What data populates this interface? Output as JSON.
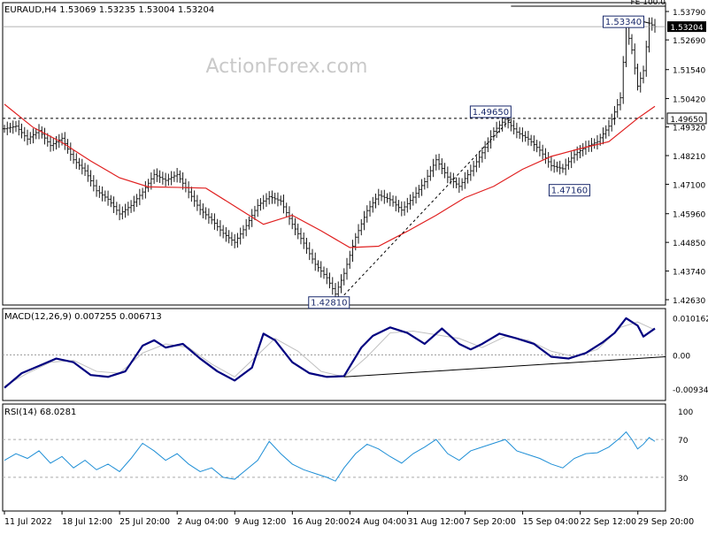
{
  "header": {
    "symbol_line": "EURAUD,H4  1.53069 1.53235 1.53004 1.53204",
    "top_right_clip": "FE 100.0"
  },
  "watermark": "ActionForex.com",
  "colors": {
    "price_bars": "#1a1a1a",
    "moving_average": "#e02020",
    "macd_line": "#000080",
    "signal_line": "#c0c0c0",
    "rsi_line": "#1f8fd6",
    "trendline": "#000000",
    "current_price_box": "#000000"
  },
  "chart_data": [
    {
      "type": "line",
      "title": "EURAUD,H4",
      "ohlc_header": [
        "1.53069",
        "1.53235",
        "1.53004",
        "1.53204"
      ],
      "x_ticks": [
        "11 Jul 2022",
        "18 Jul 12:00",
        "25 Jul 20:00",
        "2 Aug 04:00",
        "9 Aug 12:00",
        "16 Aug 20:00",
        "24 Aug 04:00",
        "31 Aug 12:00",
        "7 Sep 20:00",
        "15 Sep 04:00",
        "22 Sep 12:00",
        "29 Sep 20:00"
      ],
      "y_ticks": [
        "1.53790",
        "1.52690",
        "1.51540",
        "1.50420",
        "1.49320",
        "1.48210",
        "1.47100",
        "1.45960",
        "1.44850",
        "1.43740",
        "1.42630"
      ],
      "ylim": [
        1.4263,
        1.5379
      ],
      "price_path": [
        {
          "x": 0,
          "y": 1.4925
        },
        {
          "x": 4,
          "y": 1.4935
        },
        {
          "x": 8,
          "y": 1.4885
        },
        {
          "x": 12,
          "y": 1.4918
        },
        {
          "x": 16,
          "y": 1.486
        },
        {
          "x": 20,
          "y": 1.4888
        },
        {
          "x": 24,
          "y": 1.4805
        },
        {
          "x": 28,
          "y": 1.4762
        },
        {
          "x": 32,
          "y": 1.4685
        },
        {
          "x": 36,
          "y": 1.4652
        },
        {
          "x": 40,
          "y": 1.4595
        },
        {
          "x": 44,
          "y": 1.4628
        },
        {
          "x": 48,
          "y": 1.468
        },
        {
          "x": 52,
          "y": 1.4748
        },
        {
          "x": 56,
          "y": 1.4725
        },
        {
          "x": 60,
          "y": 1.4748
        },
        {
          "x": 64,
          "y": 1.468
        },
        {
          "x": 68,
          "y": 1.4612
        },
        {
          "x": 72,
          "y": 1.4572
        },
        {
          "x": 76,
          "y": 1.452
        },
        {
          "x": 80,
          "y": 1.4485
        },
        {
          "x": 84,
          "y": 1.455
        },
        {
          "x": 88,
          "y": 1.4628
        },
        {
          "x": 92,
          "y": 1.4662
        },
        {
          "x": 96,
          "y": 1.4645
        },
        {
          "x": 100,
          "y": 1.4555
        },
        {
          "x": 104,
          "y": 1.4482
        },
        {
          "x": 108,
          "y": 1.44
        },
        {
          "x": 112,
          "y": 1.4348
        },
        {
          "x": 115,
          "y": 1.4285
        },
        {
          "x": 118,
          "y": 1.4365
        },
        {
          "x": 122,
          "y": 1.4505
        },
        {
          "x": 126,
          "y": 1.4608
        },
        {
          "x": 130,
          "y": 1.4668
        },
        {
          "x": 134,
          "y": 1.465
        },
        {
          "x": 138,
          "y": 1.461
        },
        {
          "x": 142,
          "y": 1.466
        },
        {
          "x": 146,
          "y": 1.472
        },
        {
          "x": 150,
          "y": 1.4805
        },
        {
          "x": 154,
          "y": 1.4738
        },
        {
          "x": 158,
          "y": 1.4702
        },
        {
          "x": 162,
          "y": 1.4762
        },
        {
          "x": 166,
          "y": 1.4832
        },
        {
          "x": 170,
          "y": 1.4915
        },
        {
          "x": 174,
          "y": 1.4962
        },
        {
          "x": 178,
          "y": 1.4912
        },
        {
          "x": 182,
          "y": 1.4885
        },
        {
          "x": 186,
          "y": 1.4842
        },
        {
          "x": 190,
          "y": 1.4782
        },
        {
          "x": 194,
          "y": 1.477
        },
        {
          "x": 198,
          "y": 1.4825
        },
        {
          "x": 202,
          "y": 1.4855
        },
        {
          "x": 206,
          "y": 1.4875
        },
        {
          "x": 210,
          "y": 1.4935
        },
        {
          "x": 214,
          "y": 1.5045
        },
        {
          "x": 216,
          "y": 1.532
        },
        {
          "x": 218,
          "y": 1.523
        },
        {
          "x": 220,
          "y": 1.509
        },
        {
          "x": 222,
          "y": 1.515
        },
        {
          "x": 224,
          "y": 1.5334
        },
        {
          "x": 226,
          "y": 1.532
        }
      ],
      "moving_average": [
        {
          "x": 0,
          "y": 1.502
        },
        {
          "x": 10,
          "y": 1.493
        },
        {
          "x": 20,
          "y": 1.4872
        },
        {
          "x": 30,
          "y": 1.48
        },
        {
          "x": 40,
          "y": 1.4735
        },
        {
          "x": 50,
          "y": 1.47
        },
        {
          "x": 60,
          "y": 1.4698
        },
        {
          "x": 70,
          "y": 1.4695
        },
        {
          "x": 80,
          "y": 1.4625
        },
        {
          "x": 90,
          "y": 1.4555
        },
        {
          "x": 100,
          "y": 1.459
        },
        {
          "x": 110,
          "y": 1.453
        },
        {
          "x": 120,
          "y": 1.4465
        },
        {
          "x": 130,
          "y": 1.447
        },
        {
          "x": 140,
          "y": 1.4528
        },
        {
          "x": 150,
          "y": 1.459
        },
        {
          "x": 160,
          "y": 1.4658
        },
        {
          "x": 170,
          "y": 1.4702
        },
        {
          "x": 180,
          "y": 1.4768
        },
        {
          "x": 190,
          "y": 1.4818
        },
        {
          "x": 200,
          "y": 1.4848
        },
        {
          "x": 210,
          "y": 1.4875
        },
        {
          "x": 220,
          "y": 1.4965
        },
        {
          "x": 226,
          "y": 1.5012
        }
      ],
      "horizontal_level": 1.4965,
      "upper_reference_line": 1.5379,
      "trendline": [
        {
          "x": 118,
          "y": 1.4281
        },
        {
          "x": 176,
          "y": 1.4965
        }
      ],
      "annotations": [
        {
          "label": "1.53340",
          "x": 224,
          "y": 1.5334
        },
        {
          "label": "1.49650",
          "x": 176,
          "y": 1.4965
        },
        {
          "label": "1.47160",
          "x": 204,
          "y": 1.4716
        },
        {
          "label": "1.42810",
          "x": 118,
          "y": 1.4281
        }
      ],
      "current_price_label": "1.53204",
      "current_price": 1.53204,
      "level_label": "1.49650"
    },
    {
      "type": "line",
      "title": "MACD(12,26,9) 0.007255 0.006713",
      "y_ticks": [
        "0.010162",
        "0.00",
        "-0.009344"
      ],
      "ylim": [
        -0.011,
        0.0112
      ],
      "zero_label": "0.00",
      "macd": [
        {
          "x": 0,
          "y": -0.009
        },
        {
          "x": 6,
          "y": -0.005
        },
        {
          "x": 12,
          "y": -0.003
        },
        {
          "x": 18,
          "y": -0.001
        },
        {
          "x": 24,
          "y": -0.002
        },
        {
          "x": 30,
          "y": -0.0055
        },
        {
          "x": 36,
          "y": -0.006
        },
        {
          "x": 42,
          "y": -0.0045
        },
        {
          "x": 48,
          "y": 0.0025
        },
        {
          "x": 52,
          "y": 0.004
        },
        {
          "x": 56,
          "y": 0.002
        },
        {
          "x": 62,
          "y": 0.003
        },
        {
          "x": 68,
          "y": -0.001
        },
        {
          "x": 74,
          "y": -0.0045
        },
        {
          "x": 80,
          "y": -0.007
        },
        {
          "x": 86,
          "y": -0.0035
        },
        {
          "x": 90,
          "y": 0.0058
        },
        {
          "x": 94,
          "y": 0.004
        },
        {
          "x": 100,
          "y": -0.002
        },
        {
          "x": 106,
          "y": -0.005
        },
        {
          "x": 112,
          "y": -0.006
        },
        {
          "x": 118,
          "y": -0.0058
        },
        {
          "x": 124,
          "y": 0.002
        },
        {
          "x": 128,
          "y": 0.0052
        },
        {
          "x": 134,
          "y": 0.0075
        },
        {
          "x": 140,
          "y": 0.006
        },
        {
          "x": 146,
          "y": 0.003
        },
        {
          "x": 152,
          "y": 0.0072
        },
        {
          "x": 158,
          "y": 0.003
        },
        {
          "x": 162,
          "y": 0.0015
        },
        {
          "x": 166,
          "y": 0.003
        },
        {
          "x": 172,
          "y": 0.0058
        },
        {
          "x": 178,
          "y": 0.0045
        },
        {
          "x": 184,
          "y": 0.003
        },
        {
          "x": 190,
          "y": -0.0005
        },
        {
          "x": 196,
          "y": -0.001
        },
        {
          "x": 202,
          "y": 0.0005
        },
        {
          "x": 208,
          "y": 0.0035
        },
        {
          "x": 212,
          "y": 0.006
        },
        {
          "x": 216,
          "y": 0.01
        },
        {
          "x": 220,
          "y": 0.008
        },
        {
          "x": 222,
          "y": 0.005
        },
        {
          "x": 226,
          "y": 0.0072
        }
      ],
      "signal": [
        {
          "x": 0,
          "y": -0.0085
        },
        {
          "x": 8,
          "y": -0.005
        },
        {
          "x": 16,
          "y": -0.002
        },
        {
          "x": 24,
          "y": -0.0015
        },
        {
          "x": 32,
          "y": -0.0045
        },
        {
          "x": 40,
          "y": -0.005
        },
        {
          "x": 48,
          "y": 0.0005
        },
        {
          "x": 56,
          "y": 0.003
        },
        {
          "x": 64,
          "y": 0.002
        },
        {
          "x": 72,
          "y": -0.0025
        },
        {
          "x": 80,
          "y": -0.006
        },
        {
          "x": 88,
          "y": 0.0
        },
        {
          "x": 94,
          "y": 0.0045
        },
        {
          "x": 102,
          "y": 0.001
        },
        {
          "x": 110,
          "y": -0.0045
        },
        {
          "x": 118,
          "y": -0.006
        },
        {
          "x": 126,
          "y": -0.0005
        },
        {
          "x": 134,
          "y": 0.006
        },
        {
          "x": 142,
          "y": 0.0065
        },
        {
          "x": 150,
          "y": 0.0055
        },
        {
          "x": 158,
          "y": 0.0045
        },
        {
          "x": 166,
          "y": 0.002
        },
        {
          "x": 174,
          "y": 0.005
        },
        {
          "x": 182,
          "y": 0.004
        },
        {
          "x": 190,
          "y": 0.001
        },
        {
          "x": 198,
          "y": -0.0005
        },
        {
          "x": 206,
          "y": 0.0015
        },
        {
          "x": 214,
          "y": 0.0075
        },
        {
          "x": 220,
          "y": 0.009
        },
        {
          "x": 226,
          "y": 0.0068
        }
      ],
      "trendline": [
        {
          "x": 118,
          "y": -0.006
        },
        {
          "x": 226,
          "y": -0.0005
        }
      ]
    },
    {
      "type": "line",
      "title": "RSI(14) 68.0281",
      "y_ticks": [
        "100",
        "70",
        "30"
      ],
      "ylim": [
        0,
        100
      ],
      "levels": [
        70,
        30
      ],
      "rsi": [
        {
          "x": 0,
          "y": 48
        },
        {
          "x": 4,
          "y": 55
        },
        {
          "x": 8,
          "y": 50
        },
        {
          "x": 12,
          "y": 58
        },
        {
          "x": 16,
          "y": 45
        },
        {
          "x": 20,
          "y": 52
        },
        {
          "x": 24,
          "y": 40
        },
        {
          "x": 28,
          "y": 48
        },
        {
          "x": 32,
          "y": 38
        },
        {
          "x": 36,
          "y": 44
        },
        {
          "x": 40,
          "y": 36
        },
        {
          "x": 44,
          "y": 50
        },
        {
          "x": 48,
          "y": 66
        },
        {
          "x": 52,
          "y": 58
        },
        {
          "x": 56,
          "y": 48
        },
        {
          "x": 60,
          "y": 55
        },
        {
          "x": 64,
          "y": 44
        },
        {
          "x": 68,
          "y": 36
        },
        {
          "x": 72,
          "y": 40
        },
        {
          "x": 76,
          "y": 30
        },
        {
          "x": 80,
          "y": 28
        },
        {
          "x": 84,
          "y": 38
        },
        {
          "x": 88,
          "y": 48
        },
        {
          "x": 92,
          "y": 68
        },
        {
          "x": 96,
          "y": 55
        },
        {
          "x": 100,
          "y": 44
        },
        {
          "x": 104,
          "y": 38
        },
        {
          "x": 108,
          "y": 34
        },
        {
          "x": 112,
          "y": 30
        },
        {
          "x": 115,
          "y": 26
        },
        {
          "x": 118,
          "y": 40
        },
        {
          "x": 122,
          "y": 55
        },
        {
          "x": 126,
          "y": 65
        },
        {
          "x": 130,
          "y": 60
        },
        {
          "x": 134,
          "y": 52
        },
        {
          "x": 138,
          "y": 45
        },
        {
          "x": 142,
          "y": 55
        },
        {
          "x": 146,
          "y": 62
        },
        {
          "x": 150,
          "y": 70
        },
        {
          "x": 154,
          "y": 55
        },
        {
          "x": 158,
          "y": 48
        },
        {
          "x": 162,
          "y": 58
        },
        {
          "x": 166,
          "y": 62
        },
        {
          "x": 170,
          "y": 66
        },
        {
          "x": 174,
          "y": 70
        },
        {
          "x": 178,
          "y": 58
        },
        {
          "x": 182,
          "y": 54
        },
        {
          "x": 186,
          "y": 50
        },
        {
          "x": 190,
          "y": 44
        },
        {
          "x": 194,
          "y": 40
        },
        {
          "x": 198,
          "y": 50
        },
        {
          "x": 202,
          "y": 55
        },
        {
          "x": 206,
          "y": 56
        },
        {
          "x": 210,
          "y": 62
        },
        {
          "x": 214,
          "y": 72
        },
        {
          "x": 216,
          "y": 78
        },
        {
          "x": 218,
          "y": 70
        },
        {
          "x": 220,
          "y": 60
        },
        {
          "x": 222,
          "y": 65
        },
        {
          "x": 224,
          "y": 72
        },
        {
          "x": 226,
          "y": 68
        }
      ]
    }
  ]
}
